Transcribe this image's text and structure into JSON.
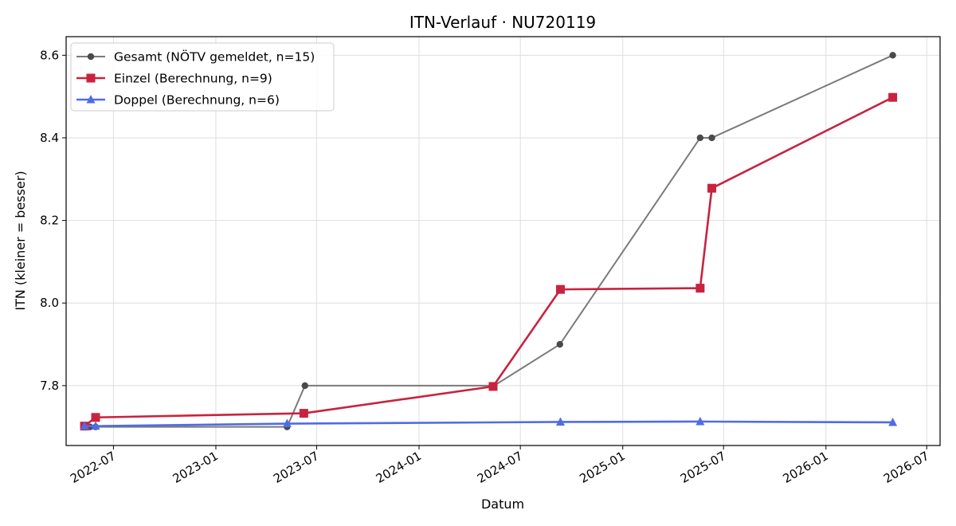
{
  "chart_data": {
    "type": "line",
    "title": "ITN-Verlauf · NU720119",
    "xlabel": "Datum",
    "ylabel": "ITN  (kleiner = besser)",
    "x_axis_type": "date",
    "xlim": [
      "2022-04-07",
      "2026-07-25"
    ],
    "ylim": [
      7.655,
      8.645
    ],
    "x_ticks": [
      "2022-07-01",
      "2023-01-01",
      "2023-07-01",
      "2024-01-01",
      "2024-07-01",
      "2025-01-01",
      "2025-07-01",
      "2026-01-01",
      "2026-07-01"
    ],
    "x_tick_labels": [
      "2022-07",
      "2023-01",
      "2023-07",
      "2024-01",
      "2024-07",
      "2025-01",
      "2025-07",
      "2026-01",
      "2026-07"
    ],
    "y_ticks": [
      7.8,
      8.0,
      8.2,
      8.4,
      8.6
    ],
    "y_tick_labels": [
      "7.8",
      "8.0",
      "8.2",
      "8.4",
      "8.6"
    ],
    "grid": true,
    "legend_position": "top-left",
    "series": [
      {
        "name": "Gesamt (NÖTV gemeldet, n=15)",
        "color": "#7a7a7a",
        "marker_color": "#4a4a4a",
        "marker": "circle",
        "points": [
          {
            "x": "2022-05-10",
            "y": 7.7
          },
          {
            "x": "2022-05-20",
            "y": 7.7
          },
          {
            "x": "2022-05-30",
            "y": 7.7
          },
          {
            "x": "2023-05-09",
            "y": 7.7
          },
          {
            "x": "2023-06-10",
            "y": 7.8
          },
          {
            "x": "2024-05-15",
            "y": 7.8
          },
          {
            "x": "2024-09-10",
            "y": 7.9
          },
          {
            "x": "2025-05-20",
            "y": 8.4
          },
          {
            "x": "2025-06-10",
            "y": 8.4
          },
          {
            "x": "2026-05-01",
            "y": 8.6
          }
        ]
      },
      {
        "name": "Einzel (Berechnung, n=9)",
        "color": "#c9223f",
        "marker": "square",
        "points": [
          {
            "x": "2022-05-10",
            "y": 7.702
          },
          {
            "x": "2022-05-30",
            "y": 7.723
          },
          {
            "x": "2023-06-08",
            "y": 7.733
          },
          {
            "x": "2024-05-13",
            "y": 7.798
          },
          {
            "x": "2024-09-11",
            "y": 8.033
          },
          {
            "x": "2025-05-20",
            "y": 8.036
          },
          {
            "x": "2025-06-10",
            "y": 8.278
          },
          {
            "x": "2026-05-01",
            "y": 8.498
          }
        ]
      },
      {
        "name": "Doppel (Berechnung, n=6)",
        "color": "#4f6ce6",
        "marker": "triangle",
        "points": [
          {
            "x": "2022-05-10",
            "y": 7.702
          },
          {
            "x": "2022-05-30",
            "y": 7.702
          },
          {
            "x": "2023-05-09",
            "y": 7.708
          },
          {
            "x": "2024-09-11",
            "y": 7.712
          },
          {
            "x": "2025-05-20",
            "y": 7.713
          },
          {
            "x": "2026-05-01",
            "y": 7.711
          }
        ]
      }
    ]
  }
}
